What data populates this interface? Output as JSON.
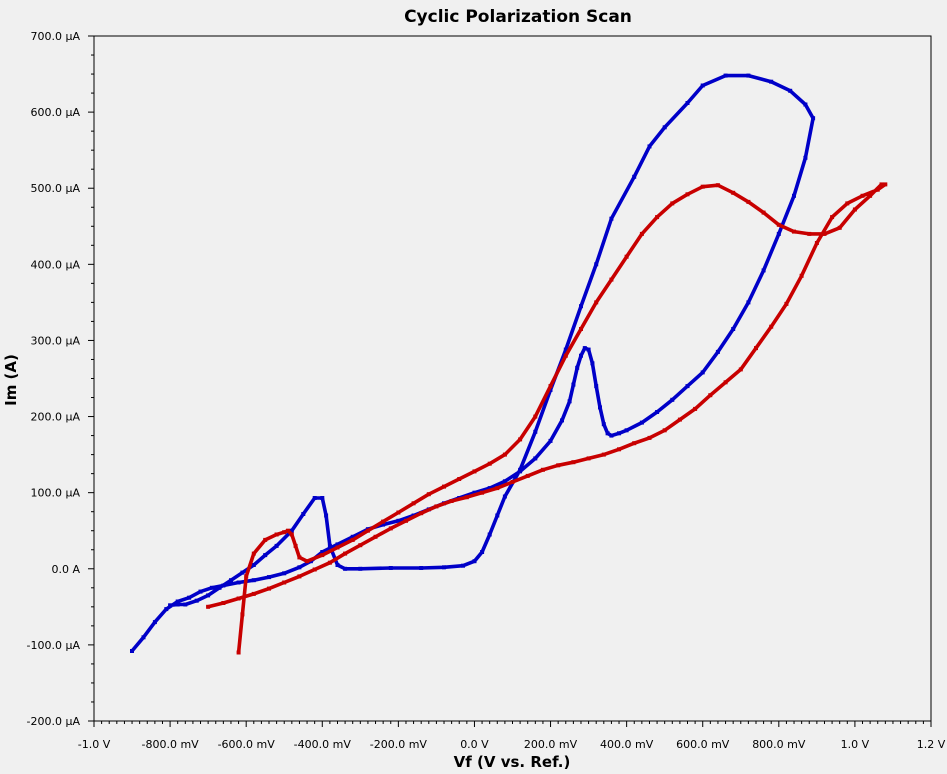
{
  "chart_data": {
    "type": "line",
    "title": "Cyclic Polarization Scan",
    "xlabel": "Vf (V vs. Ref.)",
    "ylabel": "Im (A)",
    "xlim": [
      -1.0,
      1.2
    ],
    "ylim": [
      -200,
      700
    ],
    "x_units": "V",
    "y_units": "µA",
    "grid": false,
    "legend": "none",
    "x_ticks": [
      {
        "value": -1.0,
        "label": "-1.0 V"
      },
      {
        "value": -0.8,
        "label": "-800.0 mV"
      },
      {
        "value": -0.6,
        "label": "-600.0 mV"
      },
      {
        "value": -0.4,
        "label": "-400.0 mV"
      },
      {
        "value": -0.2,
        "label": "-200.0 mV"
      },
      {
        "value": 0.0,
        "label": "0.0 V"
      },
      {
        "value": 0.2,
        "label": "200.0 mV"
      },
      {
        "value": 0.4,
        "label": "400.0 mV"
      },
      {
        "value": 0.6,
        "label": "600.0 mV"
      },
      {
        "value": 0.8,
        "label": "800.0 mV"
      },
      {
        "value": 1.0,
        "label": "1.0 V"
      },
      {
        "value": 1.2,
        "label": "1.2 V"
      }
    ],
    "y_ticks": [
      {
        "value": 700,
        "label": "700.0 µA"
      },
      {
        "value": 600,
        "label": "600.0 µA"
      },
      {
        "value": 500,
        "label": "500.0 µA"
      },
      {
        "value": 400,
        "label": "400.0 µA"
      },
      {
        "value": 300,
        "label": "300.0 µA"
      },
      {
        "value": 200,
        "label": "200.0 µA"
      },
      {
        "value": 100,
        "label": "100.0 µA"
      },
      {
        "value": 0,
        "label": "0.0 A"
      },
      {
        "value": -100,
        "label": "-100.0 µA"
      },
      {
        "value": -200,
        "label": "-200.0 µA"
      }
    ],
    "series": [
      {
        "color": "#0000c8",
        "points": [
          [
            -0.9,
            -108
          ],
          [
            -0.87,
            -90
          ],
          [
            -0.84,
            -70
          ],
          [
            -0.81,
            -53
          ],
          [
            -0.78,
            -43
          ],
          [
            -0.75,
            -38
          ],
          [
            -0.72,
            -30
          ],
          [
            -0.69,
            -25
          ],
          [
            -0.66,
            -22
          ],
          [
            -0.62,
            -18
          ],
          [
            -0.58,
            -15
          ],
          [
            -0.54,
            -11
          ],
          [
            -0.5,
            -6
          ],
          [
            -0.46,
            2
          ],
          [
            -0.43,
            10
          ],
          [
            -0.4,
            22
          ],
          [
            -0.36,
            32
          ],
          [
            -0.32,
            42
          ],
          [
            -0.28,
            52
          ],
          [
            -0.24,
            58
          ],
          [
            -0.2,
            63
          ],
          [
            -0.16,
            70
          ],
          [
            -0.12,
            78
          ],
          [
            -0.08,
            86
          ],
          [
            -0.04,
            93
          ],
          [
            0.0,
            100
          ],
          [
            0.04,
            106
          ],
          [
            0.08,
            115
          ],
          [
            0.12,
            128
          ],
          [
            0.16,
            145
          ],
          [
            0.2,
            168
          ],
          [
            0.23,
            195
          ],
          [
            0.25,
            220
          ],
          [
            0.26,
            242
          ],
          [
            0.27,
            264
          ],
          [
            0.28,
            280
          ],
          [
            0.29,
            290
          ],
          [
            0.3,
            288
          ],
          [
            0.31,
            270
          ],
          [
            0.32,
            240
          ],
          [
            0.33,
            212
          ],
          [
            0.34,
            190
          ],
          [
            0.35,
            178
          ],
          [
            0.36,
            175
          ],
          [
            0.38,
            178
          ],
          [
            0.4,
            182
          ],
          [
            0.44,
            192
          ],
          [
            0.48,
            206
          ],
          [
            0.52,
            222
          ],
          [
            0.56,
            240
          ],
          [
            0.6,
            258
          ],
          [
            0.64,
            285
          ],
          [
            0.68,
            315
          ],
          [
            0.72,
            350
          ],
          [
            0.76,
            392
          ],
          [
            0.8,
            440
          ],
          [
            0.84,
            490
          ],
          [
            0.87,
            540
          ],
          [
            0.89,
            592
          ],
          [
            0.87,
            610
          ],
          [
            0.83,
            628
          ],
          [
            0.78,
            640
          ],
          [
            0.72,
            648
          ],
          [
            0.66,
            648
          ],
          [
            0.6,
            635
          ],
          [
            0.56,
            612
          ],
          [
            0.5,
            580
          ],
          [
            0.46,
            555
          ],
          [
            0.42,
            515
          ],
          [
            0.36,
            460
          ],
          [
            0.32,
            400
          ],
          [
            0.28,
            345
          ],
          [
            0.24,
            288
          ],
          [
            0.2,
            235
          ],
          [
            0.16,
            180
          ],
          [
            0.12,
            130
          ],
          [
            0.08,
            95
          ],
          [
            0.06,
            70
          ],
          [
            0.04,
            45
          ],
          [
            0.02,
            22
          ],
          [
            0.0,
            10
          ],
          [
            -0.03,
            4
          ],
          [
            -0.08,
            2
          ],
          [
            -0.14,
            1
          ],
          [
            -0.22,
            1
          ],
          [
            -0.3,
            0
          ],
          [
            -0.34,
            0
          ],
          [
            -0.36,
            5
          ],
          [
            -0.38,
            30
          ],
          [
            -0.39,
            70
          ],
          [
            -0.4,
            93
          ],
          [
            -0.42,
            93
          ],
          [
            -0.45,
            72
          ],
          [
            -0.48,
            50
          ],
          [
            -0.52,
            30
          ],
          [
            -0.55,
            18
          ],
          [
            -0.58,
            5
          ],
          [
            -0.61,
            -5
          ],
          [
            -0.64,
            -15
          ],
          [
            -0.67,
            -25
          ],
          [
            -0.7,
            -35
          ],
          [
            -0.73,
            -42
          ],
          [
            -0.76,
            -47
          ],
          [
            -0.78,
            -47
          ],
          [
            -0.8,
            -48
          ]
        ]
      },
      {
        "color": "#c80000",
        "points": [
          [
            -0.7,
            -50
          ],
          [
            -0.66,
            -45
          ],
          [
            -0.62,
            -39
          ],
          [
            -0.58,
            -33
          ],
          [
            -0.54,
            -26
          ],
          [
            -0.5,
            -18
          ],
          [
            -0.46,
            -10
          ],
          [
            -0.42,
            -1
          ],
          [
            -0.38,
            8
          ],
          [
            -0.34,
            20
          ],
          [
            -0.3,
            31
          ],
          [
            -0.26,
            42
          ],
          [
            -0.22,
            53
          ],
          [
            -0.18,
            63
          ],
          [
            -0.14,
            73
          ],
          [
            -0.1,
            82
          ],
          [
            -0.06,
            89
          ],
          [
            -0.02,
            94
          ],
          [
            0.02,
            100
          ],
          [
            0.06,
            106
          ],
          [
            0.1,
            114
          ],
          [
            0.14,
            122
          ],
          [
            0.18,
            130
          ],
          [
            0.22,
            136
          ],
          [
            0.26,
            140
          ],
          [
            0.3,
            145
          ],
          [
            0.34,
            150
          ],
          [
            0.38,
            157
          ],
          [
            0.42,
            165
          ],
          [
            0.46,
            172
          ],
          [
            0.5,
            182
          ],
          [
            0.54,
            196
          ],
          [
            0.58,
            210
          ],
          [
            0.62,
            228
          ],
          [
            0.66,
            245
          ],
          [
            0.7,
            262
          ],
          [
            0.74,
            290
          ],
          [
            0.78,
            318
          ],
          [
            0.82,
            348
          ],
          [
            0.86,
            385
          ],
          [
            0.9,
            428
          ],
          [
            0.94,
            462
          ],
          [
            0.98,
            480
          ],
          [
            1.02,
            490
          ],
          [
            1.06,
            498
          ],
          [
            1.08,
            505
          ],
          [
            1.07,
            505
          ],
          [
            1.04,
            490
          ],
          [
            1.0,
            472
          ],
          [
            0.96,
            448
          ],
          [
            0.92,
            440
          ],
          [
            0.88,
            440
          ],
          [
            0.84,
            443
          ],
          [
            0.8,
            452
          ],
          [
            0.76,
            468
          ],
          [
            0.72,
            482
          ],
          [
            0.68,
            494
          ],
          [
            0.64,
            504
          ],
          [
            0.6,
            502
          ],
          [
            0.56,
            492
          ],
          [
            0.52,
            480
          ],
          [
            0.48,
            462
          ],
          [
            0.44,
            440
          ],
          [
            0.4,
            410
          ],
          [
            0.36,
            380
          ],
          [
            0.32,
            350
          ],
          [
            0.28,
            315
          ],
          [
            0.24,
            280
          ],
          [
            0.2,
            240
          ],
          [
            0.16,
            200
          ],
          [
            0.12,
            170
          ],
          [
            0.08,
            150
          ],
          [
            0.04,
            138
          ],
          [
            0.0,
            128
          ],
          [
            -0.04,
            118
          ],
          [
            -0.08,
            108
          ],
          [
            -0.12,
            98
          ],
          [
            -0.16,
            86
          ],
          [
            -0.2,
            74
          ],
          [
            -0.24,
            62
          ],
          [
            -0.28,
            50
          ],
          [
            -0.32,
            38
          ],
          [
            -0.36,
            28
          ],
          [
            -0.4,
            18
          ],
          [
            -0.44,
            10
          ],
          [
            -0.46,
            15
          ],
          [
            -0.47,
            30
          ],
          [
            -0.48,
            45
          ],
          [
            -0.49,
            50
          ],
          [
            -0.5,
            48
          ],
          [
            -0.52,
            45
          ],
          [
            -0.55,
            38
          ],
          [
            -0.58,
            20
          ],
          [
            -0.6,
            -10
          ],
          [
            -0.61,
            -60
          ],
          [
            -0.62,
            -110
          ]
        ]
      }
    ]
  }
}
